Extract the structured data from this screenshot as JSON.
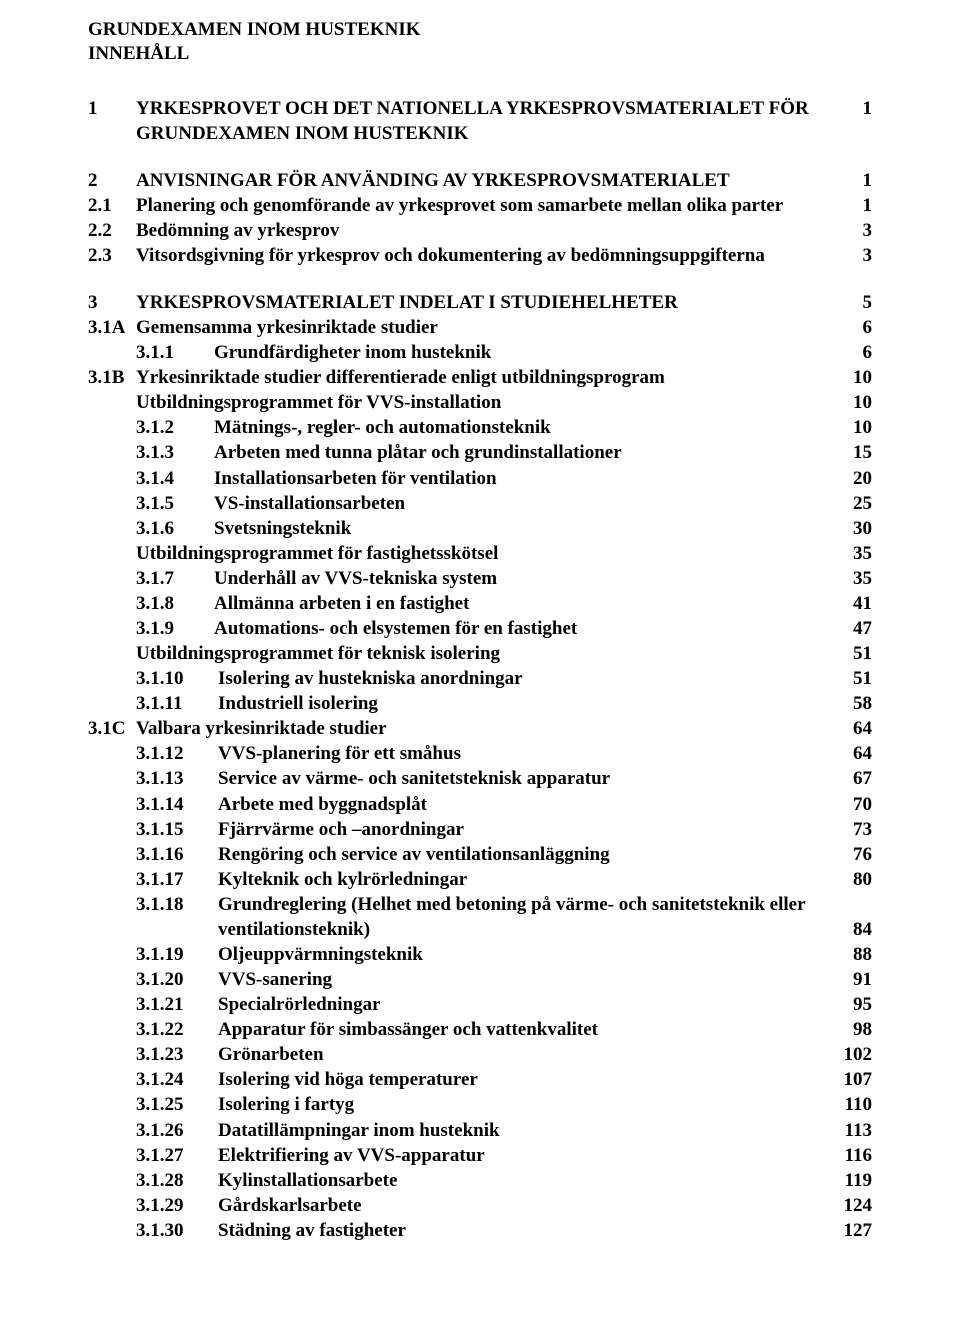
{
  "title1": "GRUNDEXAMEN INOM HUSTEKNIK",
  "title2": "INNEHÅLL",
  "sec1": {
    "num": "1",
    "text": "YRKESPROVET OCH DET NATIONELLA YRKESPROVSMATERIALET FÖR GRUNDEXAMEN INOM HUSTEKNIK",
    "page": "1"
  },
  "sec2": {
    "num": "2",
    "text": "ANVISNINGAR FÖR ANVÄNDING AV YRKESPROVSMATERIALET",
    "page": "1"
  },
  "s21": {
    "num": "2.1",
    "text": "Planering och genomförande av yrkesprovet som samarbete mellan olika parter",
    "page": "1"
  },
  "s22": {
    "num": "2.2",
    "text": "Bedömning av yrkesprov",
    "page": "3"
  },
  "s23": {
    "num": "2.3",
    "text": "Vitsordsgivning för yrkesprov och dokumentering av bedömningsuppgifterna",
    "page": "3"
  },
  "sec3": {
    "num": "3",
    "text": "YRKESPROVSMATERIALET INDELAT I STUDIEHELHETER",
    "page": "5"
  },
  "s3a": {
    "num": "3.1A",
    "text": "Gemensamma yrkesinriktade studier",
    "page": "6"
  },
  "s311": {
    "num": "3.1.1",
    "text": "Grundfärdigheter inom husteknik",
    "page": "6"
  },
  "s3b": {
    "num": "3.1B",
    "text": "Yrkesinriktade studier differentierade enligt utbildningsprogram",
    "page": "10"
  },
  "prog_vvs": {
    "text": "Utbildningsprogrammet för VVS-installation",
    "page": "10"
  },
  "s312": {
    "num": "3.1.2",
    "text": "Mätnings-, regler- och automationsteknik",
    "page": "10"
  },
  "s313": {
    "num": "3.1.3",
    "text": "Arbeten med tunna plåtar och grundinstallationer",
    "page": "15"
  },
  "s314": {
    "num": "3.1.4",
    "text": "Installationsarbeten för ventilation",
    "page": "20"
  },
  "s315": {
    "num": "3.1.5",
    "text": "VS-installationsarbeten",
    "page": "25"
  },
  "s316": {
    "num": "3.1.6",
    "text": "Svetsningsteknik",
    "page": "30"
  },
  "prog_fast": {
    "text": "Utbildningsprogrammet för fastighetsskötsel",
    "page": "35"
  },
  "s317": {
    "num": "3.1.7",
    "text": "Underhåll av VVS-tekniska system",
    "page": "35"
  },
  "s318": {
    "num": "3.1.8",
    "text": "Allmänna arbeten i en fastighet",
    "page": "41"
  },
  "s319": {
    "num": "3.1.9",
    "text": "Automations- och elsystemen för en fastighet",
    "page": "47"
  },
  "prog_iso": {
    "text": "Utbildningsprogrammet för teknisk isolering",
    "page": "51"
  },
  "s3110": {
    "num": "3.1.10",
    "text": "Isolering av hustekniska anordningar",
    "page": "51"
  },
  "s3111": {
    "num": "3.1.11",
    "text": "Industriell isolering",
    "page": "58"
  },
  "s3c": {
    "num": "3.1C",
    "text": "Valbara yrkesinriktade studier",
    "page": "64"
  },
  "s3112": {
    "num": "3.1.12",
    "text": "VVS-planering för ett småhus",
    "page": "64"
  },
  "s3113": {
    "num": "3.1.13",
    "text": "Service av värme- och sanitetsteknisk apparatur",
    "page": "67"
  },
  "s3114": {
    "num": "3.1.14",
    "text": "Arbete med byggnadsplåt",
    "page": "70"
  },
  "s3115": {
    "num": "3.1.15",
    "text": "Fjärrvärme och –anordningar",
    "page": "73"
  },
  "s3116": {
    "num": "3.1.16",
    "text": "Rengöring och service av ventilationsanläggning",
    "page": "76"
  },
  "s3117": {
    "num": "3.1.17",
    "text": "Kylteknik och kylrörledningar",
    "page": "80"
  },
  "s3118a": {
    "num": "3.1.18",
    "text": "Grundreglering (Helhet med betoning på värme- och sanitetsteknik eller"
  },
  "s3118b": {
    "text": " ventilationsteknik)",
    "page": "84"
  },
  "s3119": {
    "num": "3.1.19",
    "text": "Oljeuppvärmningsteknik",
    "page": "88"
  },
  "s3120": {
    "num": "3.1.20",
    "text": "VVS-sanering",
    "page": "91"
  },
  "s3121": {
    "num": "3.1.21",
    "text": "Specialrörledningar",
    "page": "95"
  },
  "s3122": {
    "num": "3.1.22",
    "text": "Apparatur för simbassänger och vattenkvalitet",
    "page": "98"
  },
  "s3123": {
    "num": "3.1.23",
    "text": "Grönarbeten",
    "page": "102"
  },
  "s3124": {
    "num": "3.1.24",
    "text": "Isolering vid höga temperaturer",
    "page": "107"
  },
  "s3125": {
    "num": "3.1.25",
    "text": "Isolering i fartyg",
    "page": "110"
  },
  "s3126": {
    "num": "3.1.26",
    "text": "Datatillämpningar inom husteknik",
    "page": "113"
  },
  "s3127": {
    "num": "3.1.27",
    "text": "Elektrifiering av VVS-apparatur",
    "page": "116"
  },
  "s3128": {
    "num": "3.1.28",
    "text": "Kylinstallationsarbete",
    "page": "119"
  },
  "s3129": {
    "num": "3.1.29",
    "text": "Gårdskarlsarbete",
    "page": "124"
  },
  "s3130": {
    "num": "3.1.30",
    "text": "Städning av fastigheter",
    "page": "127"
  }
}
